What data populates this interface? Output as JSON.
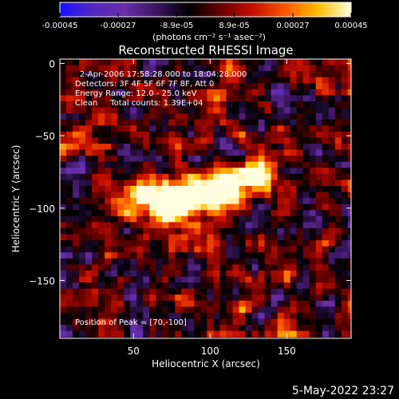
{
  "colorbar": {
    "tick_labels": [
      "-0.00045",
      "-0.00027",
      "-8.9e-05",
      "8.9e-05",
      "0.00027",
      "0.00045"
    ],
    "tick_values": [
      -0.00045,
      -0.00027,
      -8.9e-05,
      8.9e-05,
      0.00027,
      0.00045
    ],
    "range": [
      -0.00045,
      0.00045
    ],
    "unit_label": "(photons cm⁻² s⁻¹ asec⁻²)",
    "stops": [
      "#1a10ff",
      "#5028c0",
      "#6a2ea8",
      "#3a1660",
      "#000000",
      "#6a0000",
      "#c81000",
      "#ff5a00",
      "#ffc000",
      "#ffffe0"
    ]
  },
  "chart_data": {
    "type": "heatmap",
    "title": "Reconstructed RHESSI Image",
    "xlabel": "Heliocentric X (arcsec)",
    "ylabel": "Heliocentric Y (arcsec)",
    "xlim": [
      2,
      192
    ],
    "ylim": [
      -190,
      3
    ],
    "x_ticks": [
      50,
      100,
      150
    ],
    "y_ticks": [
      0,
      -50,
      -100,
      -150
    ],
    "x_tick_labels": [
      "50",
      "100",
      "150"
    ],
    "y_tick_labels": [
      "0",
      "−50",
      "−100",
      "−150"
    ],
    "peak_position": [
      70,
      -100
    ],
    "emission_ridge": [
      {
        "x": 45,
        "y": -90,
        "value": 0.00025
      },
      {
        "x": 58,
        "y": -92,
        "value": 0.00035
      },
      {
        "x": 70,
        "y": -100,
        "value": 0.00045
      },
      {
        "x": 82,
        "y": -95,
        "value": 0.0004
      },
      {
        "x": 95,
        "y": -88,
        "value": 0.00036
      },
      {
        "x": 110,
        "y": -90,
        "value": 0.0004
      },
      {
        "x": 122,
        "y": -85,
        "value": 0.00033
      },
      {
        "x": 135,
        "y": -75,
        "value": 0.00034
      }
    ],
    "info_lines": [
      "2-Apr-2006 17:58:28.000 to 18:04:28.000",
      "Detectors: 3F 4F 5F 6F 7F 8F, Att 0",
      "Energy Range: 12.0 - 25.0 keV",
      "Clean     Total counts: 1.39E+04"
    ],
    "peak_label": "Position of Peak = [70,-100]"
  },
  "footer": {
    "date": "5-May-2022 23:27"
  }
}
